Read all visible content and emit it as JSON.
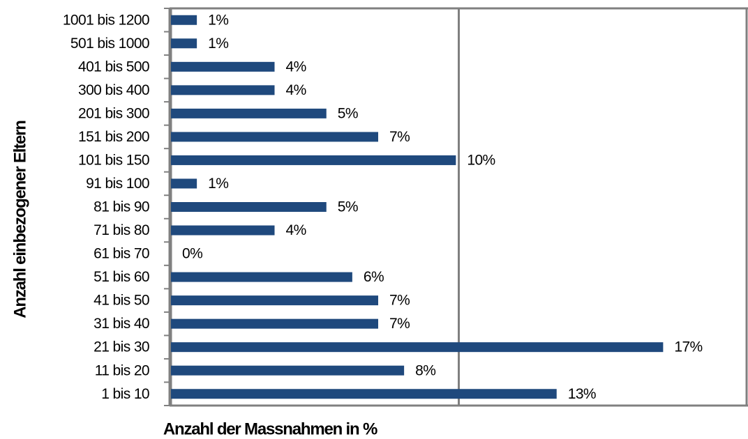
{
  "chart_data": {
    "type": "barh",
    "y_label": "Anzahl einbezogener Eltern",
    "x_label": "Anzahl der Massnahmen in %",
    "categories": [
      "1001 bis 1200",
      "501 bis 1000",
      "401 bis 500",
      "300 bis 400",
      "201 bis 300",
      "151 bis 200",
      "101 bis 150",
      "91 bis 100",
      "81 bis 90",
      "71 bis 80",
      "61 bis 70",
      "51 bis 60",
      "41 bis 50",
      "31 bis 40",
      "21 bis 30",
      "11 bis 20",
      "1 bis 10"
    ],
    "values": [
      0.9,
      0.9,
      3.6,
      3.6,
      5.4,
      7.2,
      9.9,
      0.9,
      5.4,
      3.6,
      0,
      6.3,
      7.2,
      7.2,
      17.1,
      8.1,
      13.4
    ],
    "value_labels": [
      "1%",
      "1%",
      "4%",
      "4%",
      "5%",
      "7%",
      "10%",
      "1%",
      "5%",
      "4%",
      "0%",
      "6%",
      "7%",
      "7%",
      "17%",
      "8%",
      "13%"
    ],
    "color": "#1f497d",
    "xlim": [
      0,
      20
    ],
    "xticks": [
      0,
      10,
      20
    ],
    "grid": true
  }
}
